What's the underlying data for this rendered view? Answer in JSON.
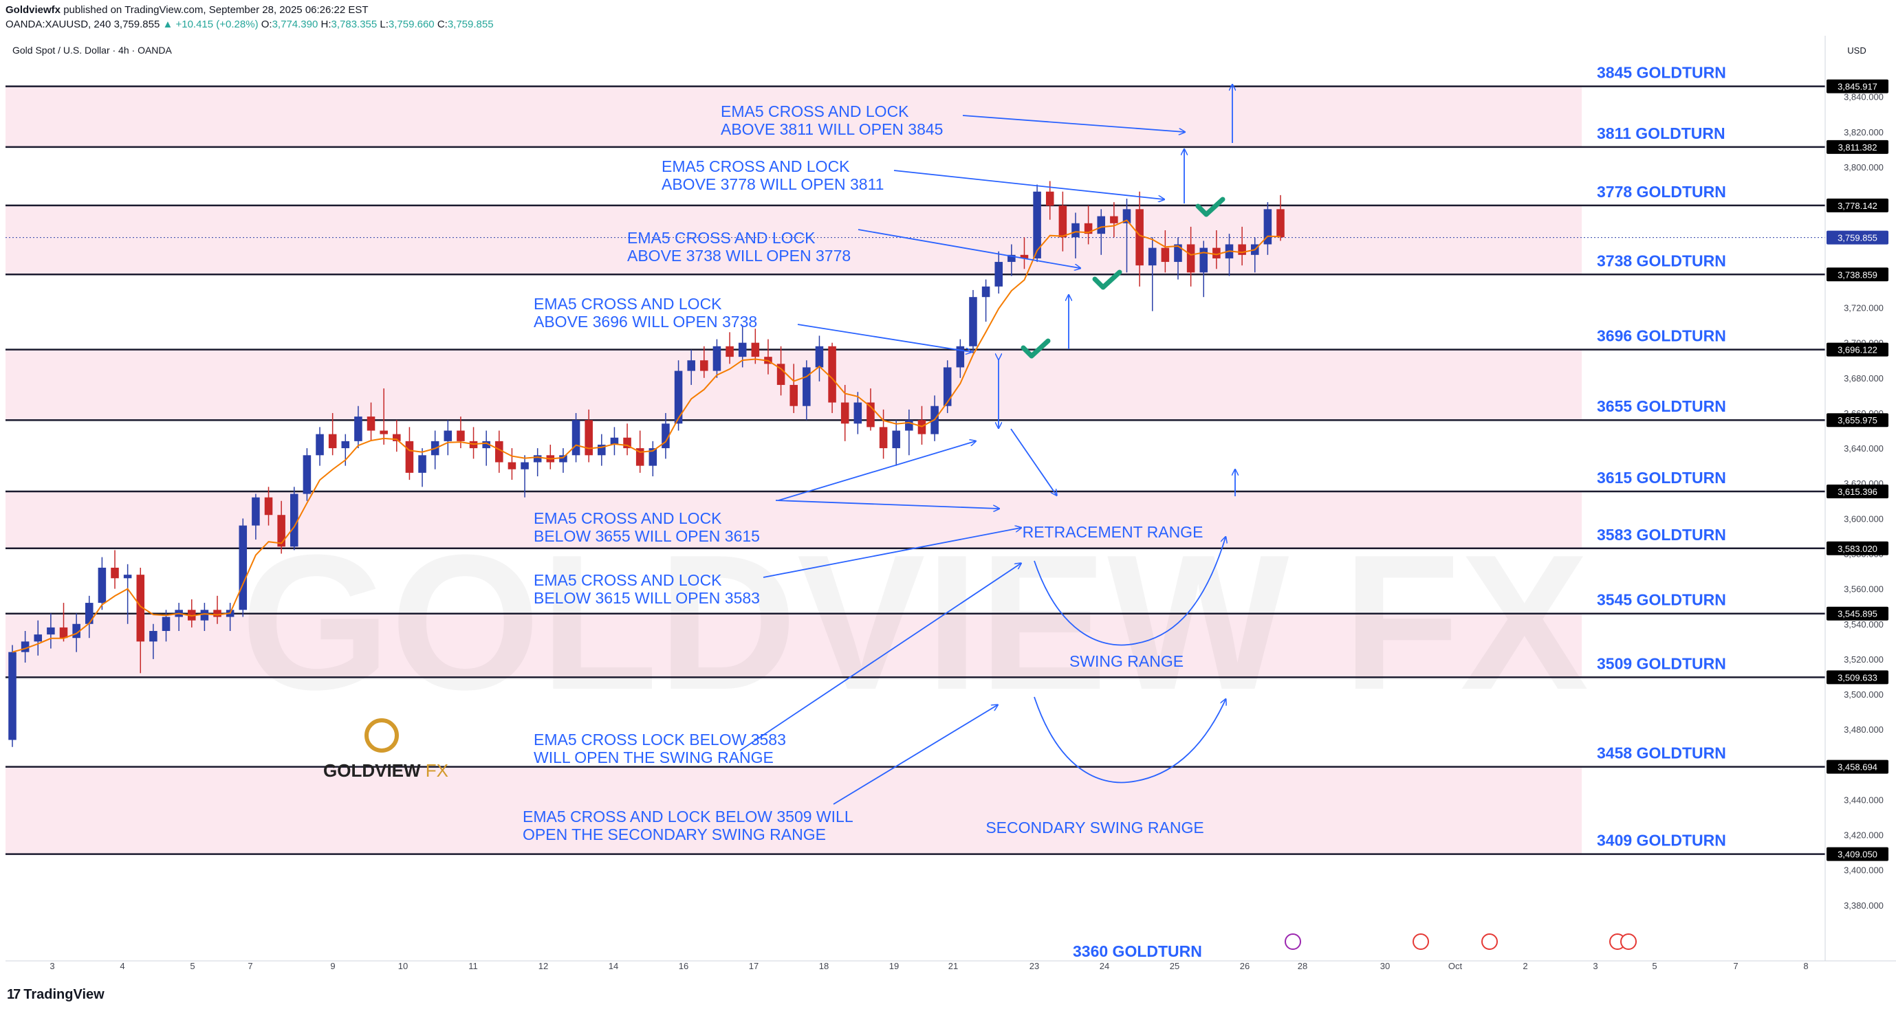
{
  "header": {
    "publisher": "Goldviewfx",
    "published_on": " published on TradingView.com, September 28, 2025 06:26:22 EST",
    "symbol": "OANDA:XAUUSD, 240",
    "last": "3,759.855",
    "change": "▲ +10.415 (+0.28%)",
    "o_label": "O:",
    "o": "3,774.390",
    "h_label": "H:",
    "h": "3,783.355",
    "l_label": "L:",
    "l": "3,759.660",
    "c_label": "C:",
    "c": "3,759.855"
  },
  "pane": {
    "title": "Gold Spot / U.S. Dollar · 4h · OANDA",
    "currency": "USD"
  },
  "watermark": "GOLDVIEW FX",
  "brand_logo": {
    "text_1": "GOLDVIEW",
    "text_2": " FX"
  },
  "footer": {
    "logo": "TradingView",
    "logo_mark": "17"
  },
  "colors": {
    "up": "#2a3fa8",
    "down": "#c62828",
    "ema": "#f57c00",
    "zone": "#fce4ec",
    "line": "#1a1a2e",
    "annot": "#2962ff",
    "check": "#1b9e7a"
  },
  "chart_data": {
    "type": "candlestick",
    "title": "Gold Spot / U.S. Dollar · 4h · OANDA",
    "ylabel": "USD",
    "ylim": [
      3360,
      3870
    ],
    "y_ticks": [
      "3,840.000",
      "3,820.000",
      "3,800.000",
      "3,780.000",
      "3,760.000",
      "3,740.000",
      "3,720.000",
      "3,700.000",
      "3,680.000",
      "3,660.000",
      "3,640.000",
      "3,620.000",
      "3,600.000",
      "3,580.000",
      "3,560.000",
      "3,540.000",
      "3,520.000",
      "3,500.000",
      "3,480.000",
      "3,460.000",
      "3,440.000",
      "3,420.000",
      "3,400.000",
      "3,380.000"
    ],
    "x_ticks": [
      "3",
      "4",
      "5",
      "7",
      "9",
      "10",
      "11",
      "12",
      "14",
      "16",
      "17",
      "18",
      "19",
      "21",
      "23",
      "24",
      "25",
      "26",
      "28",
      "30",
      "Oct",
      "2",
      "3",
      "5",
      "7",
      "8"
    ],
    "levels": [
      {
        "value": 3845.917,
        "tag": "3,845.917",
        "label": "3845 GOLDTURN"
      },
      {
        "value": 3811.382,
        "tag": "3,811.382",
        "label": "3811 GOLDTURN"
      },
      {
        "value": 3778.142,
        "tag": "3,778.142",
        "label": "3778 GOLDTURN"
      },
      {
        "value": 3738.859,
        "tag": "3,738.859",
        "label": "3738 GOLDTURN"
      },
      {
        "value": 3696.122,
        "tag": "3,696.122",
        "label": "3696 GOLDTURN"
      },
      {
        "value": 3655.975,
        "tag": "3,655.975",
        "label": "3655 GOLDTURN"
      },
      {
        "value": 3615.396,
        "tag": "3,615.396",
        "label": "3615 GOLDTURN"
      },
      {
        "value": 3583.02,
        "tag": "3,583.020",
        "label": "3583 GOLDTURN"
      },
      {
        "value": 3545.895,
        "tag": "3,545.895",
        "label": "3545 GOLDTURN"
      },
      {
        "value": 3509.633,
        "tag": "3,509.633",
        "label": "3509 GOLDTURN"
      },
      {
        "value": 3458.694,
        "tag": "3,458.694",
        "label": "3458 GOLDTURN"
      },
      {
        "value": 3409.05,
        "tag": "3,409.050",
        "label": "3409 GOLDTURN"
      }
    ],
    "last_price": {
      "value": 3759.855,
      "tag": "3,759.855"
    },
    "partial_label": "3360 GOLDTURN",
    "zones": [
      [
        3811.382,
        3845.917
      ],
      [
        3738.859,
        3778.142
      ],
      [
        3655.975,
        3696.122
      ],
      [
        3583.02,
        3615.396
      ],
      [
        3509.633,
        3545.895
      ],
      [
        3409.05,
        3458.694
      ]
    ],
    "annotations": [
      {
        "line1": "EMA5 CROSS AND LOCK",
        "line2": "ABOVE 3811 WILL OPEN 3845"
      },
      {
        "line1": "EMA5 CROSS AND LOCK",
        "line2": "ABOVE 3778 WILL OPEN 3811"
      },
      {
        "line1": "EMA5 CROSS AND LOCK",
        "line2": "ABOVE 3738 WILL OPEN 3778"
      },
      {
        "line1": "EMA5 CROSS AND LOCK",
        "line2": "ABOVE 3696 WILL OPEN 3738"
      },
      {
        "line1": "EMA5 CROSS AND LOCK",
        "line2": "BELOW 3655 WILL OPEN 3615"
      },
      {
        "line1": "EMA5 CROSS AND LOCK",
        "line2": "BELOW 3615 WILL OPEN 3583"
      },
      {
        "line1": "EMA5 CROSS LOCK BELOW 3583",
        "line2": "WILL OPEN THE SWING RANGE"
      },
      {
        "line1": "EMA5 CROSS AND LOCK BELOW 3509 WILL",
        "line2": "OPEN THE SECONDARY SWING RANGE"
      }
    ],
    "range_labels": [
      "RETRACEMENT RANGE",
      "SWING RANGE",
      "SECONDARY SWING RANGE"
    ],
    "candles": [
      [
        3474,
        3528,
        3470,
        3524
      ],
      [
        3524,
        3536,
        3518,
        3530
      ],
      [
        3530,
        3542,
        3522,
        3534
      ],
      [
        3534,
        3546,
        3526,
        3538
      ],
      [
        3538,
        3552,
        3530,
        3532
      ],
      [
        3532,
        3546,
        3524,
        3540
      ],
      [
        3540,
        3556,
        3532,
        3552
      ],
      [
        3552,
        3578,
        3548,
        3572
      ],
      [
        3572,
        3582,
        3560,
        3566
      ],
      [
        3566,
        3574,
        3540,
        3568
      ],
      [
        3568,
        3572,
        3512,
        3530
      ],
      [
        3530,
        3540,
        3520,
        3536
      ],
      [
        3536,
        3548,
        3530,
        3544
      ],
      [
        3544,
        3552,
        3536,
        3548
      ],
      [
        3548,
        3554,
        3538,
        3542
      ],
      [
        3542,
        3552,
        3536,
        3548
      ],
      [
        3548,
        3556,
        3540,
        3544
      ],
      [
        3544,
        3552,
        3536,
        3548
      ],
      [
        3548,
        3600,
        3544,
        3596
      ],
      [
        3596,
        3614,
        3588,
        3612
      ],
      [
        3612,
        3618,
        3596,
        3602
      ],
      [
        3602,
        3610,
        3580,
        3584
      ],
      [
        3584,
        3618,
        3582,
        3614
      ],
      [
        3614,
        3640,
        3610,
        3636
      ],
      [
        3636,
        3652,
        3630,
        3648
      ],
      [
        3648,
        3660,
        3636,
        3640
      ],
      [
        3640,
        3648,
        3630,
        3644
      ],
      [
        3644,
        3664,
        3640,
        3658
      ],
      [
        3658,
        3666,
        3644,
        3650
      ],
      [
        3650,
        3674,
        3642,
        3648
      ],
      [
        3648,
        3656,
        3638,
        3644
      ],
      [
        3644,
        3652,
        3622,
        3626
      ],
      [
        3626,
        3640,
        3618,
        3636
      ],
      [
        3636,
        3650,
        3628,
        3644
      ],
      [
        3644,
        3656,
        3636,
        3650
      ],
      [
        3650,
        3658,
        3640,
        3644
      ],
      [
        3644,
        3652,
        3634,
        3640
      ],
      [
        3640,
        3650,
        3630,
        3644
      ],
      [
        3644,
        3650,
        3626,
        3632
      ],
      [
        3632,
        3640,
        3622,
        3628
      ],
      [
        3628,
        3636,
        3612,
        3632
      ],
      [
        3632,
        3640,
        3624,
        3636
      ],
      [
        3636,
        3642,
        3628,
        3632
      ],
      [
        3632,
        3640,
        3626,
        3636
      ],
      [
        3636,
        3660,
        3632,
        3656
      ],
      [
        3656,
        3662,
        3632,
        3636
      ],
      [
        3636,
        3648,
        3630,
        3642
      ],
      [
        3642,
        3652,
        3636,
        3646
      ],
      [
        3646,
        3654,
        3636,
        3640
      ],
      [
        3640,
        3650,
        3626,
        3630
      ],
      [
        3630,
        3644,
        3624,
        3640
      ],
      [
        3640,
        3660,
        3634,
        3654
      ],
      [
        3654,
        3690,
        3650,
        3684
      ],
      [
        3684,
        3696,
        3676,
        3690
      ],
      [
        3690,
        3698,
        3680,
        3684
      ],
      [
        3684,
        3702,
        3680,
        3698
      ],
      [
        3698,
        3706,
        3688,
        3692
      ],
      [
        3692,
        3710,
        3686,
        3700
      ],
      [
        3700,
        3708,
        3688,
        3692
      ],
      [
        3692,
        3702,
        3682,
        3688
      ],
      [
        3688,
        3698,
        3670,
        3676
      ],
      [
        3676,
        3688,
        3660,
        3664
      ],
      [
        3664,
        3690,
        3656,
        3686
      ],
      [
        3686,
        3704,
        3678,
        3698
      ],
      [
        3698,
        3700,
        3660,
        3666
      ],
      [
        3666,
        3676,
        3644,
        3654
      ],
      [
        3654,
        3672,
        3648,
        3666
      ],
      [
        3666,
        3674,
        3650,
        3652
      ],
      [
        3652,
        3662,
        3634,
        3640
      ],
      [
        3640,
        3656,
        3630,
        3650
      ],
      [
        3650,
        3662,
        3636,
        3656
      ],
      [
        3656,
        3664,
        3642,
        3648
      ],
      [
        3648,
        3670,
        3644,
        3664
      ],
      [
        3664,
        3690,
        3660,
        3686
      ],
      [
        3686,
        3702,
        3680,
        3698
      ],
      [
        3698,
        3730,
        3694,
        3726
      ],
      [
        3726,
        3736,
        3712,
        3732
      ],
      [
        3732,
        3752,
        3728,
        3746
      ],
      [
        3746,
        3756,
        3738,
        3750
      ],
      [
        3750,
        3760,
        3742,
        3748
      ],
      [
        3748,
        3790,
        3746,
        3786
      ],
      [
        3786,
        3792,
        3770,
        3778
      ],
      [
        3778,
        3786,
        3752,
        3760
      ],
      [
        3760,
        3774,
        3748,
        3768
      ],
      [
        3768,
        3778,
        3756,
        3762
      ],
      [
        3762,
        3776,
        3750,
        3772
      ],
      [
        3772,
        3780,
        3760,
        3768
      ],
      [
        3768,
        3782,
        3740,
        3776
      ],
      [
        3776,
        3786,
        3732,
        3744
      ],
      [
        3744,
        3760,
        3718,
        3754
      ],
      [
        3754,
        3764,
        3740,
        3746
      ],
      [
        3746,
        3760,
        3736,
        3756
      ],
      [
        3756,
        3766,
        3732,
        3740
      ],
      [
        3740,
        3758,
        3726,
        3754
      ],
      [
        3754,
        3764,
        3742,
        3748
      ],
      [
        3748,
        3762,
        3738,
        3756
      ],
      [
        3756,
        3766,
        3744,
        3750
      ],
      [
        3750,
        3760,
        3740,
        3756
      ],
      [
        3756,
        3780,
        3750,
        3776
      ],
      [
        3776,
        3784,
        3758,
        3760
      ]
    ]
  }
}
